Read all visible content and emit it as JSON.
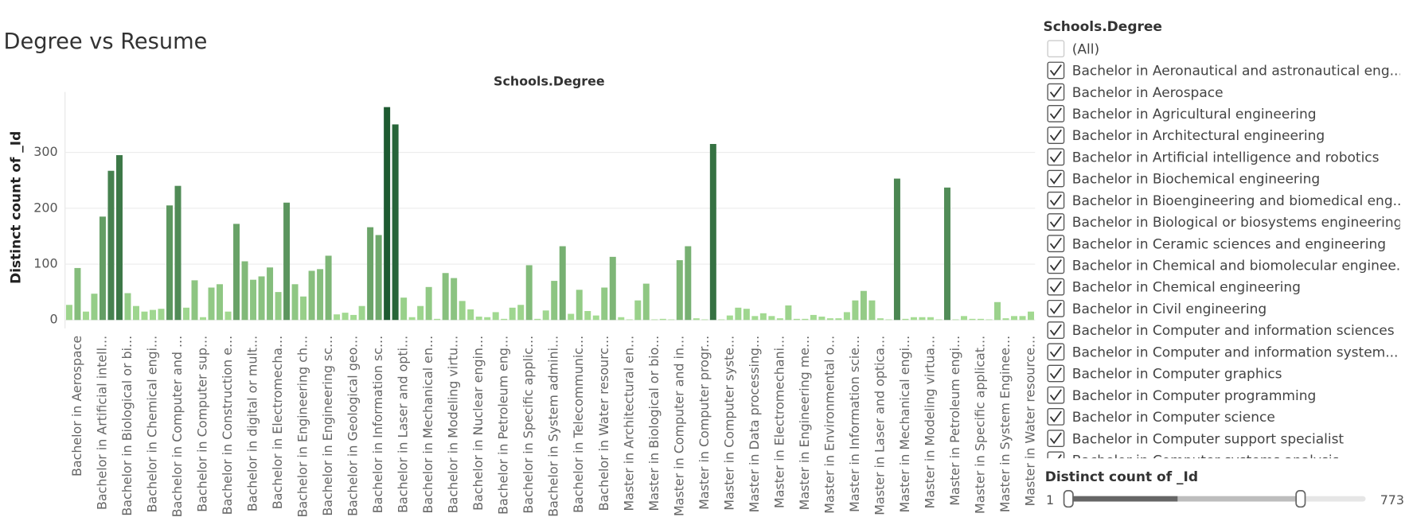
{
  "title": "Degree vs Resume",
  "chart_data": {
    "type": "bar",
    "header": "Schools.Degree",
    "y_label": "Distinct count of _Id",
    "categories": [
      null,
      "Bachelor in Aerospace",
      null,
      null,
      "Bachelor in Artificial intell...",
      null,
      null,
      "Bachelor in Biological or bi...",
      null,
      null,
      "Bachelor in Chemical engi...",
      null,
      null,
      "Bachelor in Computer and ...",
      null,
      null,
      "Bachelor in Computer sup...",
      null,
      null,
      "Bachelor in Construction e...",
      null,
      null,
      "Bachelor in digital or mult...",
      null,
      null,
      "Bachelor in Electromecha...",
      null,
      null,
      "Bachelor in Engineering ch...",
      null,
      null,
      "Bachelor in Engineering sc...",
      null,
      null,
      "Bachelor in Geological geo...",
      null,
      null,
      "Bachelor in Information sc...",
      null,
      null,
      "Bachelor in Laser and opti...",
      null,
      null,
      "Bachelor in Mechanical en...",
      null,
      null,
      "Bachelor in Modeling virtu...",
      null,
      null,
      "Bachelor in Nuclear engin...",
      null,
      null,
      "Bachelor in Petroleum eng...",
      null,
      null,
      "Bachelor in Specific applic...",
      null,
      null,
      "Bachelor in System admini...",
      null,
      null,
      "Bachelor in Telecommunic...",
      null,
      null,
      "Bachelor in Water resourc...",
      null,
      null,
      "Master in Architectural en...",
      null,
      null,
      "Master in Biological or bio...",
      null,
      null,
      "Master in Computer and in...",
      null,
      null,
      "Master in Computer progr...",
      null,
      null,
      "Master in Computer syste...",
      null,
      null,
      "Master in Data processing...",
      null,
      null,
      "Master in Electromechani...",
      null,
      null,
      "Master in Engineering me...",
      null,
      null,
      "Master in Environmental o...",
      null,
      null,
      "Master in Information scie...",
      null,
      null,
      "Master in Laser and optica...",
      null,
      null,
      "Master in Mechanical engi...",
      null,
      null,
      "Master in Modeling virtua...",
      null,
      null,
      "Master in Petroleum engi...",
      null,
      null,
      "Master in Specific applicat...",
      null,
      null,
      "Master in System Enginee...",
      null,
      null,
      "Master in Water resource..."
    ],
    "values": [
      27,
      93,
      15,
      47,
      185,
      267,
      295,
      48,
      25,
      15,
      18,
      20,
      205,
      240,
      22,
      71,
      5,
      58,
      64,
      15,
      172,
      105,
      72,
      78,
      94,
      50,
      210,
      64,
      42,
      88,
      91,
      115,
      10,
      13,
      9,
      25,
      166,
      152,
      381,
      350,
      40,
      5,
      25,
      59,
      2,
      84,
      75,
      34,
      19,
      6,
      5,
      14,
      2,
      22,
      27,
      98,
      2,
      17,
      70,
      132,
      11,
      54,
      16,
      8,
      58,
      113,
      5,
      1,
      35,
      65,
      1,
      2,
      1,
      107,
      132,
      3,
      1,
      315,
      1,
      8,
      22,
      20,
      7,
      12,
      7,
      3,
      26,
      2,
      2,
      9,
      6,
      3,
      3,
      14,
      35,
      52,
      35,
      3,
      1,
      253,
      2,
      5,
      5,
      5,
      1,
      237,
      1,
      7,
      2,
      2,
      1,
      32,
      3,
      7,
      7,
      15
    ],
    "color_range": [
      "#a6dd94",
      "#1d5a31"
    ],
    "ylim": [
      -15,
      408
    ],
    "yticks": [
      0,
      100,
      200,
      300
    ],
    "grid": true
  },
  "filter": {
    "title": "Schools.Degree",
    "items": [
      {
        "label": "(All)",
        "checked": false
      },
      {
        "label": "Bachelor in Aeronautical and astronautical eng...",
        "checked": true
      },
      {
        "label": "Bachelor in Aerospace",
        "checked": true
      },
      {
        "label": "Bachelor in Agricultural engineering",
        "checked": true
      },
      {
        "label": "Bachelor in Architectural engineering",
        "checked": true
      },
      {
        "label": "Bachelor in Artificial intelligence and robotics",
        "checked": true
      },
      {
        "label": "Bachelor in Biochemical engineering",
        "checked": true
      },
      {
        "label": "Bachelor in Bioengineering and biomedical eng...",
        "checked": true
      },
      {
        "label": "Bachelor in Biological or biosystems engineering",
        "checked": true
      },
      {
        "label": "Bachelor in Ceramic sciences and engineering",
        "checked": true
      },
      {
        "label": "Bachelor in Chemical and biomolecular enginee...",
        "checked": true
      },
      {
        "label": "Bachelor in Chemical engineering",
        "checked": true
      },
      {
        "label": "Bachelor in Civil engineering",
        "checked": true
      },
      {
        "label": "Bachelor in Computer and information sciences",
        "checked": true
      },
      {
        "label": "Bachelor in Computer and information system...",
        "checked": true
      },
      {
        "label": "Bachelor in Computer graphics",
        "checked": true
      },
      {
        "label": "Bachelor in Computer programming",
        "checked": true
      },
      {
        "label": "Bachelor in Computer science",
        "checked": true
      },
      {
        "label": "Bachelor in Computer support specialist",
        "checked": true
      },
      {
        "label": "Bachelor in Computer systems analysis",
        "checked": true
      }
    ]
  },
  "slider": {
    "label": "Distinct count of _Id",
    "min": 1,
    "max": 773,
    "low": 1,
    "high": 604
  }
}
